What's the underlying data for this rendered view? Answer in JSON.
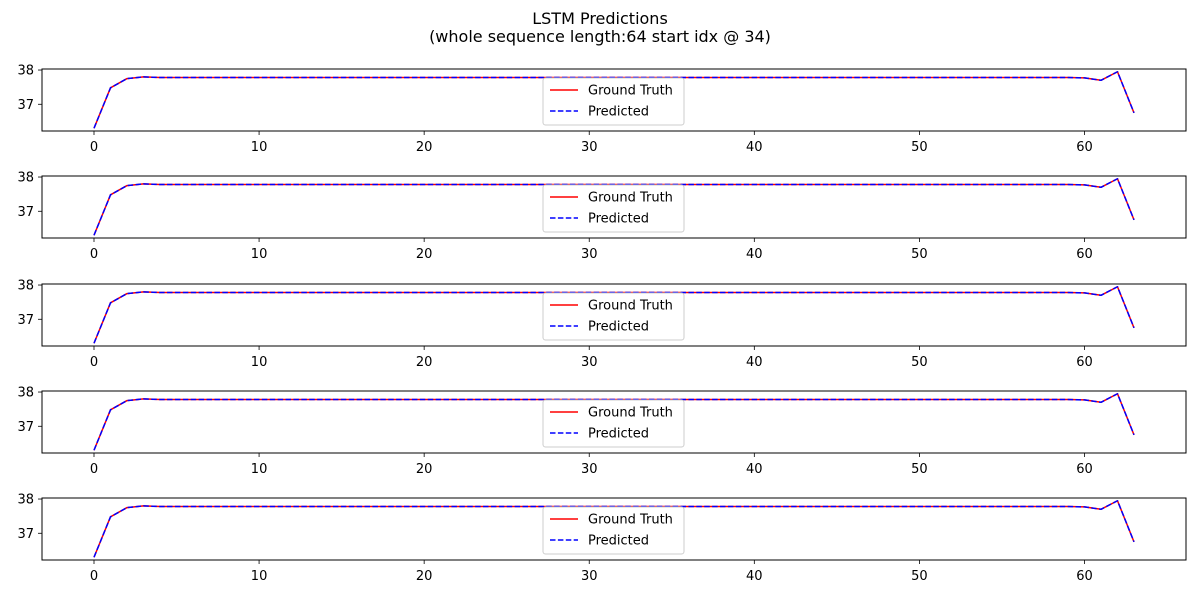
{
  "figure": {
    "title_line1": "LSTM Predictions",
    "title_line2": "(whole sequence length:64 start idx @ 34)"
  },
  "legend": {
    "ground_truth": "Ground Truth",
    "predicted": "Predicted",
    "ground_truth_color": "#ff0000",
    "predicted_color": "#0000ff"
  },
  "chart_data": [
    {
      "type": "line",
      "xlim": [
        -3.15,
        66.15
      ],
      "ylim": [
        36.22,
        38.03
      ],
      "xticks": [
        0,
        10,
        20,
        30,
        40,
        50,
        60
      ],
      "yticks": [
        37,
        38
      ],
      "legend_position": "bottom-center",
      "series": [
        {
          "name": "Ground Truth",
          "color": "#ff0000",
          "style": "solid",
          "x": [
            0,
            1,
            2,
            3,
            4,
            5,
            10,
            20,
            30,
            40,
            50,
            58,
            59,
            60,
            61,
            62,
            63
          ],
          "y": [
            36.3,
            37.48,
            37.75,
            37.8,
            37.78,
            37.78,
            37.78,
            37.78,
            37.78,
            37.78,
            37.78,
            37.78,
            37.78,
            37.77,
            37.7,
            37.95,
            36.75
          ]
        },
        {
          "name": "Predicted",
          "color": "#0000ff",
          "style": "dashed",
          "x": [
            0,
            1,
            2,
            3,
            4,
            5,
            10,
            20,
            30,
            40,
            50,
            58,
            59,
            60,
            61,
            62,
            63
          ],
          "y": [
            36.3,
            37.48,
            37.75,
            37.8,
            37.78,
            37.78,
            37.78,
            37.78,
            37.78,
            37.78,
            37.78,
            37.78,
            37.78,
            37.77,
            37.7,
            37.95,
            36.75
          ]
        }
      ]
    },
    {
      "type": "line",
      "xlim": [
        -3.15,
        66.15
      ],
      "ylim": [
        36.22,
        38.03
      ],
      "xticks": [
        0,
        10,
        20,
        30,
        40,
        50,
        60
      ],
      "yticks": [
        37,
        38
      ],
      "legend_position": "bottom-center",
      "series": [
        {
          "name": "Ground Truth",
          "color": "#ff0000",
          "style": "solid",
          "x": [
            0,
            1,
            2,
            3,
            4,
            5,
            10,
            20,
            30,
            40,
            50,
            58,
            59,
            60,
            61,
            62,
            63
          ],
          "y": [
            36.3,
            37.48,
            37.75,
            37.8,
            37.78,
            37.78,
            37.78,
            37.78,
            37.78,
            37.78,
            37.78,
            37.78,
            37.78,
            37.77,
            37.7,
            37.95,
            36.75
          ]
        },
        {
          "name": "Predicted",
          "color": "#0000ff",
          "style": "dashed",
          "x": [
            0,
            1,
            2,
            3,
            4,
            5,
            10,
            20,
            30,
            40,
            50,
            58,
            59,
            60,
            61,
            62,
            63
          ],
          "y": [
            36.3,
            37.48,
            37.75,
            37.8,
            37.78,
            37.78,
            37.78,
            37.78,
            37.78,
            37.78,
            37.78,
            37.78,
            37.78,
            37.77,
            37.7,
            37.95,
            36.75
          ]
        }
      ]
    },
    {
      "type": "line",
      "xlim": [
        -3.15,
        66.15
      ],
      "ylim": [
        36.22,
        38.03
      ],
      "xticks": [
        0,
        10,
        20,
        30,
        40,
        50,
        60
      ],
      "yticks": [
        37,
        38
      ],
      "legend_position": "bottom-center",
      "series": [
        {
          "name": "Ground Truth",
          "color": "#ff0000",
          "style": "solid",
          "x": [
            0,
            1,
            2,
            3,
            4,
            5,
            10,
            20,
            30,
            40,
            50,
            58,
            59,
            60,
            61,
            62,
            63
          ],
          "y": [
            36.3,
            37.48,
            37.75,
            37.8,
            37.78,
            37.78,
            37.78,
            37.78,
            37.78,
            37.78,
            37.78,
            37.78,
            37.78,
            37.77,
            37.7,
            37.95,
            36.75
          ]
        },
        {
          "name": "Predicted",
          "color": "#0000ff",
          "style": "dashed",
          "x": [
            0,
            1,
            2,
            3,
            4,
            5,
            10,
            20,
            30,
            40,
            50,
            58,
            59,
            60,
            61,
            62,
            63
          ],
          "y": [
            36.3,
            37.48,
            37.75,
            37.8,
            37.78,
            37.78,
            37.78,
            37.78,
            37.78,
            37.78,
            37.78,
            37.78,
            37.78,
            37.77,
            37.7,
            37.95,
            36.75
          ]
        }
      ]
    },
    {
      "type": "line",
      "xlim": [
        -3.15,
        66.15
      ],
      "ylim": [
        36.22,
        38.03
      ],
      "xticks": [
        0,
        10,
        20,
        30,
        40,
        50,
        60
      ],
      "yticks": [
        37,
        38
      ],
      "legend_position": "bottom-center",
      "series": [
        {
          "name": "Ground Truth",
          "color": "#ff0000",
          "style": "solid",
          "x": [
            0,
            1,
            2,
            3,
            4,
            5,
            10,
            20,
            30,
            40,
            50,
            58,
            59,
            60,
            61,
            62,
            63
          ],
          "y": [
            36.3,
            37.48,
            37.75,
            37.8,
            37.78,
            37.78,
            37.78,
            37.78,
            37.78,
            37.78,
            37.78,
            37.78,
            37.78,
            37.77,
            37.7,
            37.95,
            36.75
          ]
        },
        {
          "name": "Predicted",
          "color": "#0000ff",
          "style": "dashed",
          "x": [
            0,
            1,
            2,
            3,
            4,
            5,
            10,
            20,
            30,
            40,
            50,
            58,
            59,
            60,
            61,
            62,
            63
          ],
          "y": [
            36.3,
            37.48,
            37.75,
            37.8,
            37.78,
            37.78,
            37.78,
            37.78,
            37.78,
            37.78,
            37.78,
            37.78,
            37.78,
            37.77,
            37.7,
            37.95,
            36.75
          ]
        }
      ]
    },
    {
      "type": "line",
      "xlim": [
        -3.15,
        66.15
      ],
      "ylim": [
        36.22,
        38.03
      ],
      "xticks": [
        0,
        10,
        20,
        30,
        40,
        50,
        60
      ],
      "yticks": [
        37,
        38
      ],
      "legend_position": "bottom-center",
      "series": [
        {
          "name": "Ground Truth",
          "color": "#ff0000",
          "style": "solid",
          "x": [
            0,
            1,
            2,
            3,
            4,
            5,
            10,
            20,
            30,
            40,
            50,
            58,
            59,
            60,
            61,
            62,
            63
          ],
          "y": [
            36.3,
            37.48,
            37.75,
            37.8,
            37.78,
            37.78,
            37.78,
            37.78,
            37.78,
            37.78,
            37.78,
            37.78,
            37.78,
            37.77,
            37.7,
            37.95,
            36.75
          ]
        },
        {
          "name": "Predicted",
          "color": "#0000ff",
          "style": "dashed",
          "x": [
            0,
            1,
            2,
            3,
            4,
            5,
            10,
            20,
            30,
            40,
            50,
            58,
            59,
            60,
            61,
            62,
            63
          ],
          "y": [
            36.3,
            37.48,
            37.75,
            37.8,
            37.78,
            37.78,
            37.78,
            37.78,
            37.78,
            37.78,
            37.78,
            37.78,
            37.78,
            37.77,
            37.7,
            37.95,
            36.75
          ]
        }
      ]
    }
  ]
}
